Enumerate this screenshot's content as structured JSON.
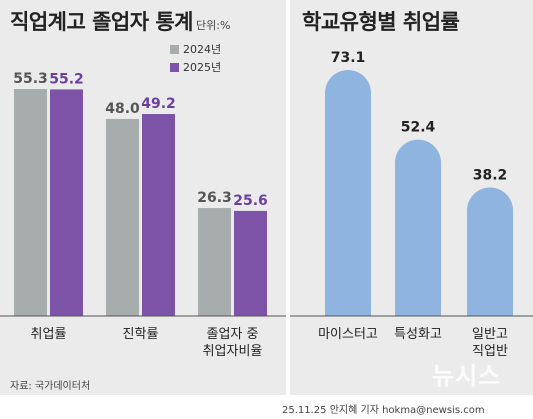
{
  "left_title": "직업계고 졸업자 통계",
  "unit_label": "단위:%",
  "source": "자료: 국가데이터처",
  "credit": "25.11.25 안지혜 기자 hokma@newsis.com",
  "watermark": "뉴시스",
  "colors": {
    "series_2024": "#a7adad",
    "series_2025": "#7c53a6",
    "value_2025_text": "#6b3fa0",
    "right_bar": "#8fb4df",
    "panel_bg": "#ebebeb"
  },
  "chart_data": [
    {
      "type": "bar",
      "title": "직업계고 졸업자 통계",
      "unit": "단위:%",
      "categories": [
        [
          "취업률"
        ],
        [
          "진학률"
        ],
        [
          "졸업자 중",
          "취업자비율"
        ]
      ],
      "series": [
        {
          "name": "2024년",
          "values": [
            55.3,
            48.0,
            26.3
          ],
          "value_labels": [
            "55.3",
            "48.0",
            "26.3"
          ]
        },
        {
          "name": "2025년",
          "values": [
            55.2,
            49.2,
            25.6
          ],
          "value_labels": [
            "55.2",
            "49.2",
            "25.6"
          ]
        }
      ],
      "ylim": [
        0,
        60
      ],
      "grid": false,
      "legend_position": "top-right"
    },
    {
      "type": "bar",
      "title": "학교유형별 취업률",
      "categories": [
        [
          "마이스터고"
        ],
        [
          "특성화고"
        ],
        [
          "일반고",
          "직업반"
        ]
      ],
      "values": [
        73.1,
        52.4,
        38.2
      ],
      "value_labels": [
        "73.1",
        "52.4",
        "38.2"
      ],
      "ylim": [
        0,
        80
      ],
      "grid": false
    }
  ]
}
